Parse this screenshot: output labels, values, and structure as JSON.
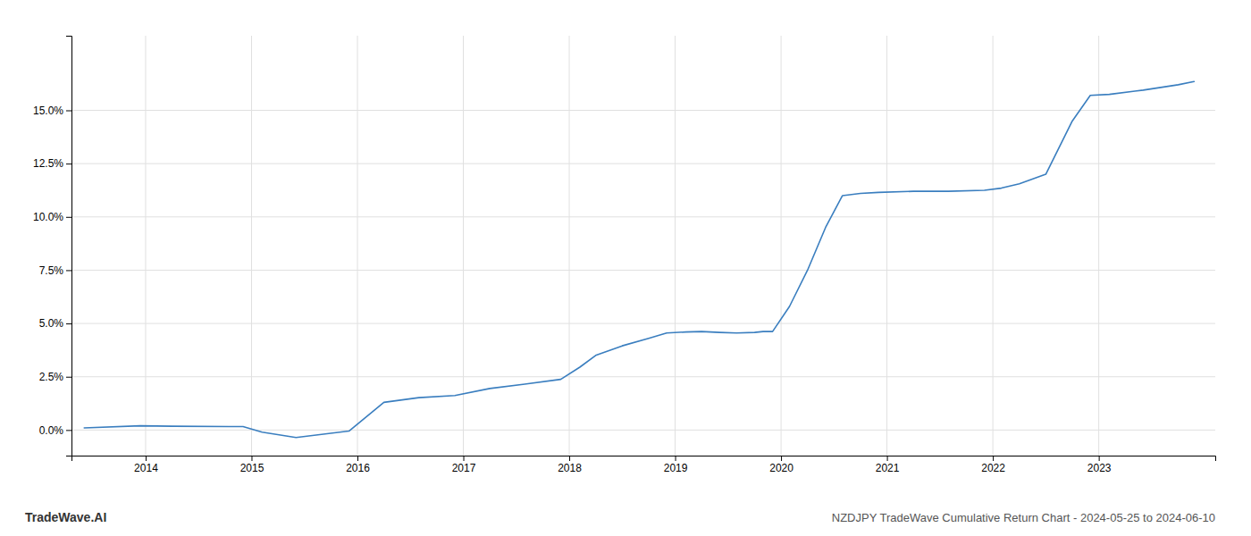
{
  "chart_data": {
    "type": "line",
    "title": "NZDJPY TradeWave Cumulative Return Chart - 2024-05-25 to 2024-06-10",
    "annotations": [
      "TradeWave.AI"
    ],
    "color": "#3a7ebf",
    "grid": true,
    "x": [
      2013.42,
      2013.95,
      2014.25,
      2014.92,
      2015.1,
      2015.42,
      2015.92,
      2016.25,
      2016.58,
      2016.92,
      2017.25,
      2017.58,
      2017.92,
      2018.1,
      2018.25,
      2018.5,
      2018.75,
      2018.92,
      2019.1,
      2019.25,
      2019.42,
      2019.58,
      2019.75,
      2019.83,
      2019.92,
      2020.08,
      2020.25,
      2020.42,
      2020.58,
      2020.75,
      2020.92,
      2021.25,
      2021.58,
      2021.92,
      2022.08,
      2022.25,
      2022.5,
      2022.75,
      2022.92,
      2023.1,
      2023.42,
      2023.75,
      2023.9
    ],
    "values": [
      0.1,
      0.2,
      0.18,
      0.16,
      -0.1,
      -0.35,
      -0.05,
      1.3,
      1.52,
      1.62,
      1.95,
      2.15,
      2.38,
      2.95,
      3.5,
      3.95,
      4.3,
      4.55,
      4.6,
      4.62,
      4.58,
      4.55,
      4.58,
      4.62,
      4.62,
      5.8,
      7.5,
      9.5,
      11.0,
      11.1,
      11.15,
      11.2,
      11.2,
      11.25,
      11.35,
      11.55,
      12.0,
      14.5,
      15.7,
      15.75,
      15.95,
      16.2,
      16.35
    ],
    "xlim": [
      2013.3,
      2024.1
    ],
    "ylim": [
      -1.2,
      18.5
    ],
    "xticks": [
      2014,
      2015,
      2016,
      2017,
      2018,
      2019,
      2020,
      2021,
      2022,
      2023
    ],
    "yticks": [
      {
        "value": 0.0,
        "label": "0.0%"
      },
      {
        "value": 2.5,
        "label": "2.5%"
      },
      {
        "value": 5.0,
        "label": "5.0%"
      },
      {
        "value": 7.5,
        "label": "7.5%"
      },
      {
        "value": 10.0,
        "label": "10.0%"
      },
      {
        "value": 12.5,
        "label": "12.5%"
      },
      {
        "value": 15.0,
        "label": "15.0%"
      }
    ]
  }
}
